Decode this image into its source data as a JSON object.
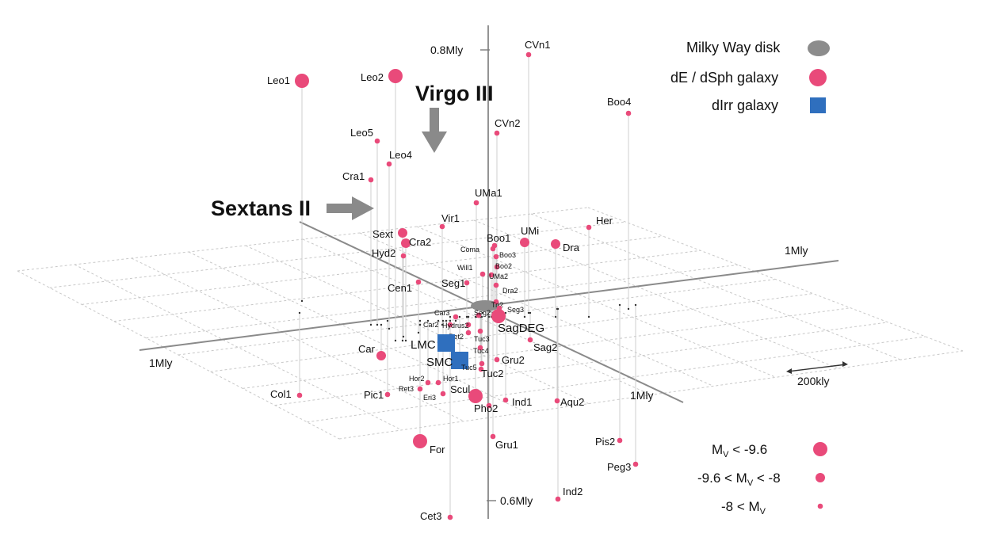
{
  "colors": {
    "dsph": "#e94a7a",
    "dirr": "#2f6fbe",
    "disk": "#8c8c8c",
    "grid": "#c8c8c8",
    "axis": "#7a7a7a",
    "arrow": "#8a8a8a"
  },
  "legend": {
    "disk": "Milky Way disk",
    "dsph": "dE / dSph galaxy",
    "dirr": "dIrr galaxy"
  },
  "size_legend": [
    {
      "pre": "M",
      "sub": "V",
      "post": "< -9.6",
      "size": "large"
    },
    {
      "pre": "-9.6 < M",
      "sub": "V",
      "post": "< -8",
      "size": "medium"
    },
    {
      "pre": "-8 < M",
      "sub": "V",
      "post": "",
      "size": "small"
    }
  ],
  "highlights": {
    "virgo": "Virgo III",
    "sextans": "Sextans II"
  },
  "axes": {
    "top_tick": "0.8Mly",
    "bottom_tick": "0.6Mly",
    "left": "1Mly",
    "right": "1Mly",
    "front": "1Mly",
    "scale": "200kly"
  },
  "galaxies": [
    {
      "name": "Leo1",
      "size": "large",
      "type": "dsph"
    },
    {
      "name": "Leo2",
      "size": "large",
      "type": "dsph"
    },
    {
      "name": "CVn1",
      "size": "small",
      "type": "dsph"
    },
    {
      "name": "Boo4",
      "size": "small",
      "type": "dsph"
    },
    {
      "name": "CVn2",
      "size": "small",
      "type": "dsph"
    },
    {
      "name": "Leo5",
      "size": "small",
      "type": "dsph"
    },
    {
      "name": "Leo4",
      "size": "small",
      "type": "dsph"
    },
    {
      "name": "Cra1",
      "size": "small",
      "type": "dsph"
    },
    {
      "name": "UMa1",
      "size": "small",
      "type": "dsph"
    },
    {
      "name": "Her",
      "size": "small",
      "type": "dsph"
    },
    {
      "name": "Vir1",
      "size": "small",
      "type": "dsph"
    },
    {
      "name": "Sext",
      "size": "medium",
      "type": "dsph"
    },
    {
      "name": "Cra2",
      "size": "medium",
      "type": "dsph"
    },
    {
      "name": "Boo1",
      "size": "small",
      "type": "dsph"
    },
    {
      "name": "UMi",
      "size": "medium",
      "type": "dsph"
    },
    {
      "name": "Dra",
      "size": "medium",
      "type": "dsph"
    },
    {
      "name": "Hyd2",
      "size": "small",
      "type": "dsph"
    },
    {
      "name": "Coma",
      "size": "small",
      "type": "dsph"
    },
    {
      "name": "Boo3",
      "size": "small",
      "type": "dsph"
    },
    {
      "name": "Boo2",
      "size": "small",
      "type": "dsph"
    },
    {
      "name": "Will1",
      "size": "small",
      "type": "dsph"
    },
    {
      "name": "UMa2",
      "size": "small",
      "type": "dsph"
    },
    {
      "name": "Seg1",
      "size": "small",
      "type": "dsph"
    },
    {
      "name": "Cen1",
      "size": "small",
      "type": "dsph"
    },
    {
      "name": "Dra2",
      "size": "small",
      "type": "dsph"
    },
    {
      "name": "Tri2",
      "size": "small",
      "type": "dsph"
    },
    {
      "name": "Seg3",
      "size": "small",
      "type": "dsph"
    },
    {
      "name": "Car3",
      "size": "small",
      "type": "dsph"
    },
    {
      "name": "Seg2",
      "size": "small",
      "type": "dsph"
    },
    {
      "name": "Car2",
      "size": "small",
      "type": "dsph"
    },
    {
      "name": "Hydrus2",
      "size": "small",
      "type": "dsph"
    },
    {
      "name": "Ret2",
      "size": "small",
      "type": "dsph"
    },
    {
      "name": "Tuc3",
      "size": "small",
      "type": "dsph"
    },
    {
      "name": "SagDEG",
      "size": "large",
      "type": "dsph"
    },
    {
      "name": "Sag2",
      "size": "small",
      "type": "dsph"
    },
    {
      "name": "Tuc4",
      "size": "small",
      "type": "dsph"
    },
    {
      "name": "LMC",
      "size": "large",
      "type": "dirr"
    },
    {
      "name": "Car",
      "size": "medium",
      "type": "dsph"
    },
    {
      "name": "SMC",
      "size": "large",
      "type": "dirr"
    },
    {
      "name": "Gru2",
      "size": "small",
      "type": "dsph"
    },
    {
      "name": "Tuc5",
      "size": "small",
      "type": "dsph"
    },
    {
      "name": "Tuc2",
      "size": "small",
      "type": "dsph"
    },
    {
      "name": "Hor2",
      "size": "small",
      "type": "dsph"
    },
    {
      "name": "Hor1",
      "size": "small",
      "type": "dsph"
    },
    {
      "name": "Ret3",
      "size": "small",
      "type": "dsph"
    },
    {
      "name": "Eri3",
      "size": "small",
      "type": "dsph"
    },
    {
      "name": "Scul",
      "size": "large",
      "type": "dsph"
    },
    {
      "name": "Col1",
      "size": "small",
      "type": "dsph"
    },
    {
      "name": "Pic1",
      "size": "small",
      "type": "dsph"
    },
    {
      "name": "Ind1",
      "size": "small",
      "type": "dsph"
    },
    {
      "name": "Aqu2",
      "size": "small",
      "type": "dsph"
    },
    {
      "name": "Pho2",
      "size": "small",
      "type": "dsph"
    },
    {
      "name": "For",
      "size": "large",
      "type": "dsph"
    },
    {
      "name": "Gru1",
      "size": "small",
      "type": "dsph"
    },
    {
      "name": "Pis2",
      "size": "small",
      "type": "dsph"
    },
    {
      "name": "Peg3",
      "size": "small",
      "type": "dsph"
    },
    {
      "name": "Ind2",
      "size": "small",
      "type": "dsph"
    },
    {
      "name": "Cet3",
      "size": "small",
      "type": "dsph"
    }
  ]
}
